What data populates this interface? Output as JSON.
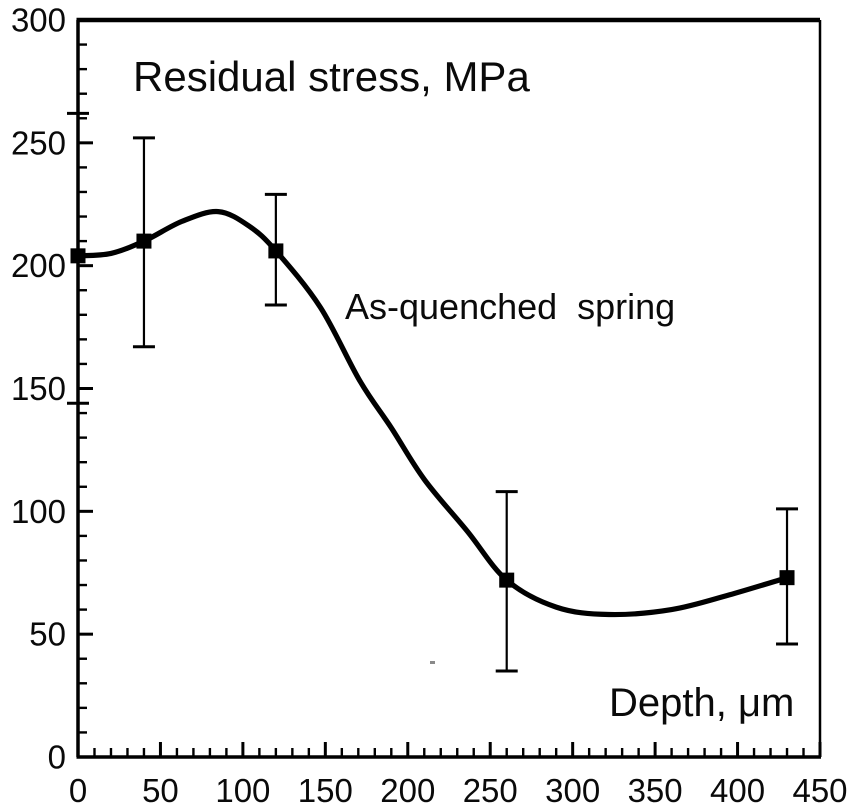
{
  "chart_data": {
    "type": "line",
    "title": "Residual stress, MPa",
    "annotation": "As-quenched  spring",
    "xlabel": "Depth, μm",
    "ylabel": "Residual stress, MPa",
    "xlim": [
      0,
      450
    ],
    "ylim": [
      0,
      300
    ],
    "x_tick_labels": [
      0,
      50,
      100,
      150,
      200,
      250,
      300,
      350,
      400,
      450
    ],
    "y_tick_labels": [
      0,
      50,
      100,
      150,
      200,
      250,
      300
    ],
    "minor_tick_step": 10,
    "grid": false,
    "legend_position": "none",
    "line_color": "#000000",
    "series": [
      {
        "name": "As-quenched spring",
        "marker": "square",
        "color": "#000000",
        "points": [
          {
            "x": 0,
            "y": 204,
            "y_low": 144,
            "y_high": 262
          },
          {
            "x": 40,
            "y": 210,
            "y_low": 167,
            "y_high": 252
          },
          {
            "x": 120,
            "y": 206,
            "y_low": 184,
            "y_high": 229
          },
          {
            "x": 260,
            "y": 72,
            "y_low": 35,
            "y_high": 108
          },
          {
            "x": 430,
            "y": 73,
            "y_low": 46,
            "y_high": 101
          }
        ],
        "curve_trace": [
          [
            0,
            204
          ],
          [
            20,
            205
          ],
          [
            40,
            210
          ],
          [
            63,
            218
          ],
          [
            85,
            222
          ],
          [
            104,
            216
          ],
          [
            120,
            206
          ],
          [
            147,
            183
          ],
          [
            171,
            153
          ],
          [
            190,
            134
          ],
          [
            210,
            113
          ],
          [
            236,
            92
          ],
          [
            260,
            72
          ],
          [
            290,
            61
          ],
          [
            322,
            58
          ],
          [
            360,
            60
          ],
          [
            395,
            66
          ],
          [
            430,
            73
          ]
        ]
      }
    ]
  }
}
